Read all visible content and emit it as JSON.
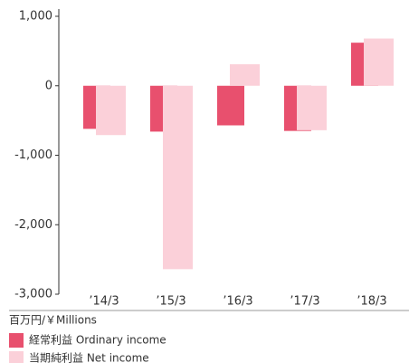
{
  "chart_data": {
    "type": "bar",
    "categories": [
      "’14/3",
      "’15/3",
      "’16/3",
      "’17/3",
      "’18/3"
    ],
    "series": [
      {
        "name": "経常利益 Ordinary income",
        "color": "#e8506e",
        "values": [
          -620,
          -660,
          -570,
          -650,
          620
        ]
      },
      {
        "name": "当期純利益 Net income",
        "color": "#fbd0d9",
        "values": [
          -710,
          -2640,
          310,
          -640,
          680
        ]
      }
    ],
    "ylim": [
      1000,
      -3000
    ],
    "yticks": [
      {
        "value": 1000,
        "label": "1,000"
      },
      0,
      {
        "value": -1000,
        "label": "-1,000"
      },
      {
        "value": -2000,
        "label": "-2,000"
      },
      {
        "value": -3000,
        "label": "-3,000"
      }
    ],
    "unit_label": "百万円/￥Millions",
    "legend": "bottom-left"
  }
}
